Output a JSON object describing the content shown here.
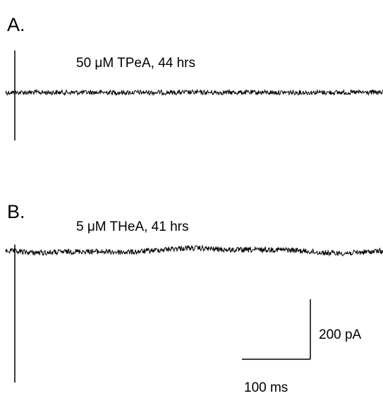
{
  "chart_data": [
    {
      "type": "line",
      "panel_label": "A.",
      "condition": "50 μM TPeA, 44 hrs",
      "trace": {
        "baseline_pA": 0,
        "noise_pA": 8,
        "drift_pA": 0
      },
      "capacitive_transient": {
        "up_pA": 140,
        "down_pA": 160
      }
    },
    {
      "type": "line",
      "panel_label": "B.",
      "condition": "5 μM THeA, 41 hrs",
      "trace": {
        "baseline_pA": 0,
        "noise_pA": 9,
        "drift_pA": 10
      },
      "capacitive_transient": {
        "up_pA": 20,
        "down_pA": 440
      }
    }
  ],
  "scale_bar": {
    "current_label": "200 pA",
    "time_label": "100 ms",
    "current_pA": 200,
    "time_ms": 100
  }
}
